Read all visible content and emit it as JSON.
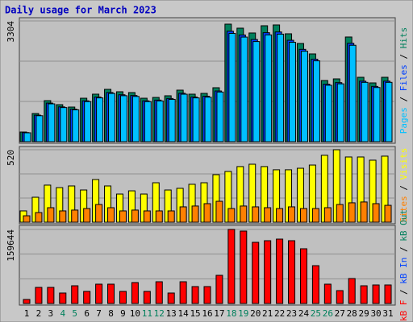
{
  "title": "Daily usage for March 2023",
  "legend_separator": " / ",
  "chart_data": [
    {
      "type": "bar",
      "ylim": [
        0,
        3304
      ],
      "yticks": [
        3304
      ],
      "series": [
        {
          "name": "Pages",
          "color": "#00c0ff",
          "values": [
            243,
            710,
            1035,
            933,
            872,
            1096,
            1198,
            1319,
            1258,
            1238,
            1096,
            1115,
            1157,
            1299,
            1198,
            1218,
            1359,
            2963,
            2862,
            2740,
            2922,
            2942,
            2720,
            2475,
            2212,
            1543,
            1583,
            2638,
            1623,
            1482,
            1623
          ]
        },
        {
          "name": "Files",
          "color": "#0040ff",
          "values": [
            248,
            725,
            1056,
            952,
            890,
            1118,
            1222,
            1346,
            1284,
            1263,
            1118,
            1138,
            1181,
            1325,
            1222,
            1243,
            1387,
            3023,
            2920,
            2796,
            2982,
            3002,
            2775,
            2526,
            2257,
            1574,
            1615,
            2692,
            1656,
            1512,
            1656
          ]
        },
        {
          "name": "Hits",
          "color": "#00805c",
          "values": [
            264,
            771,
            1123,
            1013,
            947,
            1189,
            1300,
            1432,
            1366,
            1344,
            1189,
            1211,
            1256,
            1410,
            1300,
            1322,
            1476,
            3216,
            3106,
            2974,
            3172,
            3194,
            2952,
            2687,
            2401,
            1674,
            1718,
            2864,
            1762,
            1608,
            1762
          ]
        }
      ]
    },
    {
      "type": "bar",
      "ylim": [
        0,
        520
      ],
      "yticks": [
        520
      ],
      "series": [
        {
          "name": "Sites",
          "color": "#ff8000",
          "values": [
            46,
            69,
            104,
            81,
            87,
            98,
            127,
            104,
            81,
            87,
            81,
            81,
            81,
            110,
            116,
            133,
            150,
            98,
            116,
            110,
            104,
            98,
            110,
            98,
            98,
            104,
            127,
            139,
            145,
            133,
            121
          ]
        },
        {
          "name": "Visits",
          "color": "#ffff00",
          "values": [
            81,
            179,
            266,
            248,
            260,
            231,
            306,
            260,
            202,
            225,
            202,
            283,
            231,
            243,
            272,
            283,
            341,
            364,
            399,
            416,
            399,
            376,
            376,
            387,
            410,
            480,
            520,
            468,
            468,
            445,
            474
          ]
        }
      ]
    },
    {
      "type": "bar",
      "ylim": [
        0,
        159644
      ],
      "yticks": [
        159644
      ],
      "categories": [
        "1",
        "2",
        "3",
        "4",
        "5",
        "6",
        "7",
        "8",
        "9",
        "10",
        "11",
        "12",
        "13",
        "14",
        "15",
        "16",
        "17",
        "18",
        "19",
        "20",
        "21",
        "22",
        "23",
        "24",
        "25",
        "26",
        "27",
        "28",
        "29",
        "30",
        "31"
      ],
      "category_colors": [
        "#000000",
        "#000000",
        "#000000",
        "#00805c",
        "#00805c",
        "#000000",
        "#000000",
        "#000000",
        "#000000",
        "#000000",
        "#00805c",
        "#00805c",
        "#000000",
        "#000000",
        "#000000",
        "#000000",
        "#000000",
        "#00805c",
        "#00805c",
        "#000000",
        "#000000",
        "#000000",
        "#000000",
        "#000000",
        "#00805c",
        "#00805c",
        "#000000",
        "#000000",
        "#000000",
        "#000000",
        "#000000"
      ],
      "series": [
        {
          "name": "kB F",
          "color": "#ff0000",
          "values": [
            8676,
            34702,
            34702,
            22557,
            38173,
            26027,
            41645,
            41645,
            26027,
            45111,
            26027,
            46851,
            22557,
            46851,
            36440,
            36440,
            60730,
            159644,
            156160,
            131870,
            135340,
            138800,
            135340,
            117990,
            81550,
            41645,
            27760,
            53790,
            38173,
            39910,
            39910
          ]
        },
        {
          "name": "kB In",
          "color": "#0040ff"
        },
        {
          "name": "kB Out",
          "color": "#00805c"
        }
      ]
    }
  ]
}
